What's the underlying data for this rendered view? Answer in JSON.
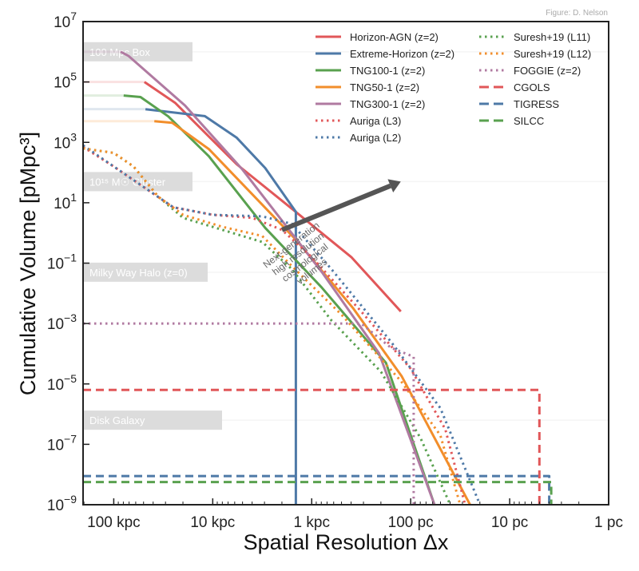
{
  "credit": "Figure: D. Nelson",
  "chart_data": {
    "type": "line",
    "title": "",
    "xlabel": "Spatial Resolution Δx",
    "ylabel": "Cumulative Volume [pMpc³]",
    "x_scale": "log",
    "x_units": "log10(Δx / kpc)",
    "x_reversed": true,
    "xlim": [
      2.31,
      -3
    ],
    "x_ticks": [
      {
        "value": 2,
        "label": "100 kpc"
      },
      {
        "value": 1,
        "label": "10 kpc"
      },
      {
        "value": 0,
        "label": "1 kpc"
      },
      {
        "value": -1,
        "label": "100 pc"
      },
      {
        "value": -2,
        "label": "10 pc"
      },
      {
        "value": -3,
        "label": "1 pc"
      }
    ],
    "y_scale": "log",
    "y_units": "log10(V / pMpc³)",
    "ylim": [
      -9,
      7
    ],
    "y_ticks": [
      {
        "value": 7,
        "base": "10",
        "exp": "7"
      },
      {
        "value": 5,
        "base": "10",
        "exp": "5"
      },
      {
        "value": 3,
        "base": "10",
        "exp": "3"
      },
      {
        "value": 1,
        "base": "10",
        "exp": "1"
      },
      {
        "value": -1,
        "base": "10",
        "exp": "−1"
      },
      {
        "value": -3,
        "base": "10",
        "exp": "−3"
      },
      {
        "value": -5,
        "base": "10",
        "exp": "−5"
      },
      {
        "value": -7,
        "base": "10",
        "exp": "−7"
      },
      {
        "value": -9,
        "base": "10",
        "exp": "−9"
      }
    ],
    "grid": false,
    "legend_position": "top-right",
    "reference_bands": [
      {
        "label": "100 Mpc Box",
        "y": 6.0
      },
      {
        "label": "10¹⁵ M☉ Cluster",
        "y": 1.7
      },
      {
        "label": "Milky Way Halo (z=0)",
        "y": -1.3
      },
      {
        "label": "Disk Galaxy",
        "y": -6.2
      }
    ],
    "annotation": {
      "text_lines": [
        "Next-generation",
        "high resolution",
        "cosmological",
        "volumes"
      ],
      "arrow_from": [
        0.3,
        0.1
      ],
      "arrow_to": [
        -0.9,
        1.7
      ]
    },
    "series": [
      {
        "name": "Horizon-AGN (z=2)",
        "color": "#e15759",
        "style": "solid",
        "faded_until": 1.69,
        "points": [
          [
            2.31,
            5.0
          ],
          [
            1.69,
            5.0
          ],
          [
            1.38,
            4.31
          ],
          [
            0.76,
            2.28
          ],
          [
            0.2,
            0.8
          ],
          [
            -0.4,
            -0.8
          ],
          [
            -0.9,
            -2.6
          ]
        ]
      },
      {
        "name": "Extreme-Horizon (z=2)",
        "color": "#4e79a7",
        "style": "solid",
        "faded_until": 1.68,
        "points": [
          [
            2.31,
            4.1
          ],
          [
            1.68,
            4.1
          ],
          [
            1.08,
            3.87
          ],
          [
            0.76,
            3.16
          ],
          [
            0.47,
            2.15
          ],
          [
            0.16,
            0.7
          ],
          [
            0.16,
            -9
          ]
        ]
      },
      {
        "name": "TNG100-1 (z=2)",
        "color": "#59a14f",
        "style": "solid",
        "faded_until": 1.9,
        "points": [
          [
            2.31,
            4.55
          ],
          [
            1.9,
            4.55
          ],
          [
            1.73,
            4.5
          ],
          [
            1.45,
            3.86
          ],
          [
            1.04,
            2.54
          ],
          [
            0.47,
            0.17
          ],
          [
            -0.1,
            -1.8
          ],
          [
            -0.75,
            -4.3
          ],
          [
            -1.24,
            -9
          ]
        ]
      },
      {
        "name": "TNG50-1 (z=2)",
        "color": "#f28e2b",
        "style": "solid",
        "faded_until": 1.59,
        "points": [
          [
            2.31,
            3.7
          ],
          [
            1.59,
            3.7
          ],
          [
            1.41,
            3.65
          ],
          [
            1.04,
            2.78
          ],
          [
            0.15,
            -0.26
          ],
          [
            -0.42,
            -2.5
          ],
          [
            -0.91,
            -4.75
          ],
          [
            -1.6,
            -9
          ]
        ]
      },
      {
        "name": "TNG300-1 (z=2)",
        "color": "#b07aa1",
        "style": "solid",
        "faded_until": 1.93,
        "points": [
          [
            2.31,
            6.0
          ],
          [
            1.93,
            6.0
          ],
          [
            1.85,
            5.86
          ],
          [
            1.28,
            4.22
          ],
          [
            0.7,
            2.1
          ],
          [
            -0.11,
            -1.33
          ],
          [
            -0.68,
            -3.98
          ],
          [
            -1.24,
            -9
          ]
        ]
      },
      {
        "name": "Auriga (L3)",
        "color": "#e15759",
        "style": "dotted",
        "points": [
          [
            2.31,
            2.85
          ],
          [
            2.0,
            2.2
          ],
          [
            1.6,
            1.3
          ],
          [
            1.4,
            0.85
          ],
          [
            1.0,
            0.6
          ],
          [
            0.6,
            0.5
          ],
          [
            0.3,
            0.1
          ],
          [
            0.0,
            -0.8
          ],
          [
            -0.5,
            -2.6
          ],
          [
            -1.0,
            -4.5
          ],
          [
            -1.35,
            -6.5
          ],
          [
            -1.55,
            -9
          ]
        ]
      },
      {
        "name": "Auriga (L2)",
        "color": "#4e79a7",
        "style": "dotted",
        "points": [
          [
            2.31,
            2.9
          ],
          [
            2.0,
            2.2
          ],
          [
            1.6,
            1.3
          ],
          [
            1.4,
            0.85
          ],
          [
            1.0,
            0.6
          ],
          [
            0.5,
            0.55
          ],
          [
            0.2,
            0.3
          ],
          [
            -0.2,
            -1.2
          ],
          [
            -0.8,
            -3.6
          ],
          [
            -1.3,
            -5.8
          ],
          [
            -1.7,
            -9
          ]
        ]
      },
      {
        "name": "Suresh+19 (L11)",
        "color": "#59a14f",
        "style": "dotted",
        "points": [
          [
            2.31,
            2.8
          ],
          [
            2.0,
            2.65
          ],
          [
            1.8,
            2.2
          ],
          [
            1.55,
            1.2
          ],
          [
            1.3,
            0.5
          ],
          [
            0.9,
            0.1
          ],
          [
            0.5,
            -0.3
          ],
          [
            0.2,
            -1.2
          ],
          [
            -0.2,
            -2.9
          ],
          [
            -0.7,
            -4.6
          ],
          [
            -1.1,
            -6.8
          ],
          [
            -1.4,
            -9
          ]
        ]
      },
      {
        "name": "Suresh+19 (L12)",
        "color": "#f28e2b",
        "style": "dotted",
        "points": [
          [
            2.31,
            2.8
          ],
          [
            2.0,
            2.65
          ],
          [
            1.8,
            2.2
          ],
          [
            1.55,
            1.2
          ],
          [
            1.3,
            0.6
          ],
          [
            0.9,
            0.2
          ],
          [
            0.5,
            -0.1
          ],
          [
            0.2,
            -1.1
          ],
          [
            -0.3,
            -2.7
          ],
          [
            -0.9,
            -4.9
          ],
          [
            -1.3,
            -6.7
          ],
          [
            -1.5,
            -9
          ]
        ]
      },
      {
        "name": "FOGGIE (z=2)",
        "color": "#b07aa1",
        "style": "dotted",
        "points": [
          [
            2.31,
            -3.0
          ],
          [
            -0.5,
            -3.0
          ],
          [
            -0.8,
            -3.8
          ],
          [
            -1.03,
            -4.1
          ],
          [
            -1.03,
            -9
          ]
        ]
      },
      {
        "name": "CGOLS",
        "color": "#e15759",
        "style": "dashed",
        "points": [
          [
            2.31,
            -5.2
          ],
          [
            -2.3,
            -5.2
          ],
          [
            -2.3,
            -9
          ]
        ]
      },
      {
        "name": "TIGRESS",
        "color": "#4e79a7",
        "style": "dashed",
        "points": [
          [
            2.31,
            -8.05
          ],
          [
            -2.4,
            -8.05
          ],
          [
            -2.4,
            -9
          ]
        ]
      },
      {
        "name": "SILCC",
        "color": "#59a14f",
        "style": "dashed",
        "points": [
          [
            2.31,
            -8.25
          ],
          [
            -2.42,
            -8.25
          ],
          [
            -2.42,
            -9
          ]
        ]
      }
    ]
  }
}
